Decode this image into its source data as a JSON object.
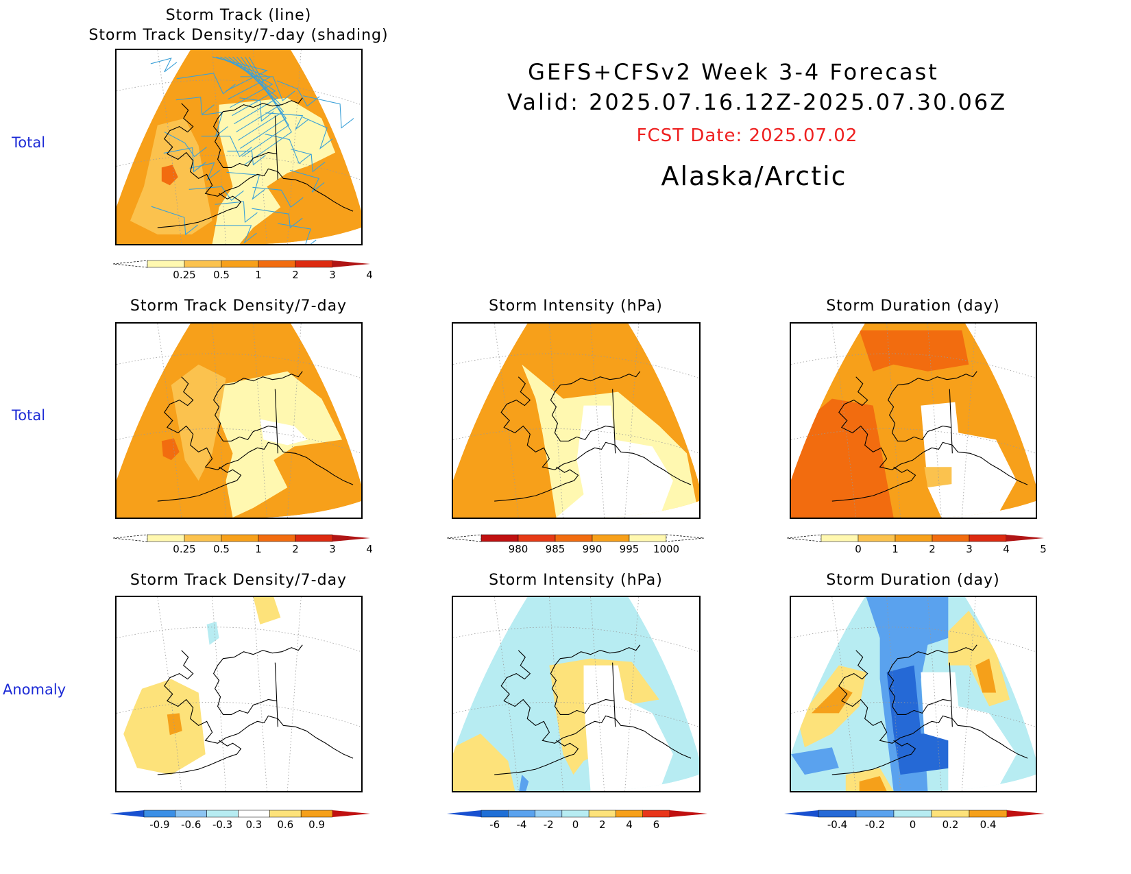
{
  "header": {
    "line1": "GEFS+CFSv2 Week 3-4 Forecast",
    "line2": "Valid: 2025.07.16.12Z-2025.07.30.06Z",
    "fcst": "FCST Date: 2025.07.02",
    "region": "Alaska/Arctic"
  },
  "colors": {
    "fcst": "#ee2020",
    "rowlabel": "#1d2bd6",
    "track_line": "#3aa0d8"
  },
  "rows": [
    "Total",
    "Total",
    "Anomaly"
  ],
  "panels": {
    "top": {
      "title1": "Storm Track (line)",
      "title2": "Storm Track Density/7-day (shading)"
    },
    "r2c1": {
      "title": "Storm Track Density/7-day"
    },
    "r2c2": {
      "title": "Storm Intensity (hPa)"
    },
    "r2c3": {
      "title": "Storm Duration (day)"
    },
    "r3c1": {
      "title": "Storm Track Density/7-day"
    },
    "r3c2": {
      "title": "Storm Intensity (hPa)"
    },
    "r3c3": {
      "title": "Storm Duration (day)"
    }
  },
  "colorbars": {
    "density": {
      "labels": [
        "0.25",
        "0.5",
        "1",
        "2",
        "3",
        "4"
      ],
      "colors": [
        "#fff8b0",
        "#fbc24e",
        "#f7a01a",
        "#f26c0f",
        "#dd2a10"
      ]
    },
    "intensity": {
      "labels": [
        "980",
        "985",
        "990",
        "995",
        "1000"
      ],
      "colors": [
        "#c01010",
        "#e63a15",
        "#f26c0f",
        "#f7a01a",
        "#fff8b0"
      ]
    },
    "duration": {
      "labels": [
        "0",
        "1",
        "2",
        "3",
        "4",
        "5"
      ],
      "colors": [
        "#fff8b0",
        "#fbc24e",
        "#f7a01a",
        "#f26c0f",
        "#dd2a10"
      ]
    },
    "dens_anom": {
      "labels": [
        "-0.9",
        "-0.6",
        "-0.3",
        "0.3",
        "0.6",
        "0.9"
      ],
      "colors": [
        "#3b8fe6",
        "#8cc4f2",
        "#b7ecf2",
        "#ffffff",
        "#fde27a",
        "#f5a01a"
      ]
    },
    "int_anom": {
      "labels": [
        "-6",
        "-4",
        "-2",
        "0",
        "2",
        "4",
        "6"
      ],
      "colors": [
        "#1f6fd6",
        "#5aa2ee",
        "#9bd2f5",
        "#b7ecf2",
        "#fde27a",
        "#f7a01a",
        "#e8361a"
      ]
    },
    "dur_anom": {
      "labels": [
        "-0.4",
        "-0.2",
        "0",
        "0.2",
        "0.4"
      ],
      "colors": [
        "#2569d6",
        "#5aa2ee",
        "#b7ecf2",
        "#fde27a",
        "#f5a01a"
      ]
    }
  }
}
